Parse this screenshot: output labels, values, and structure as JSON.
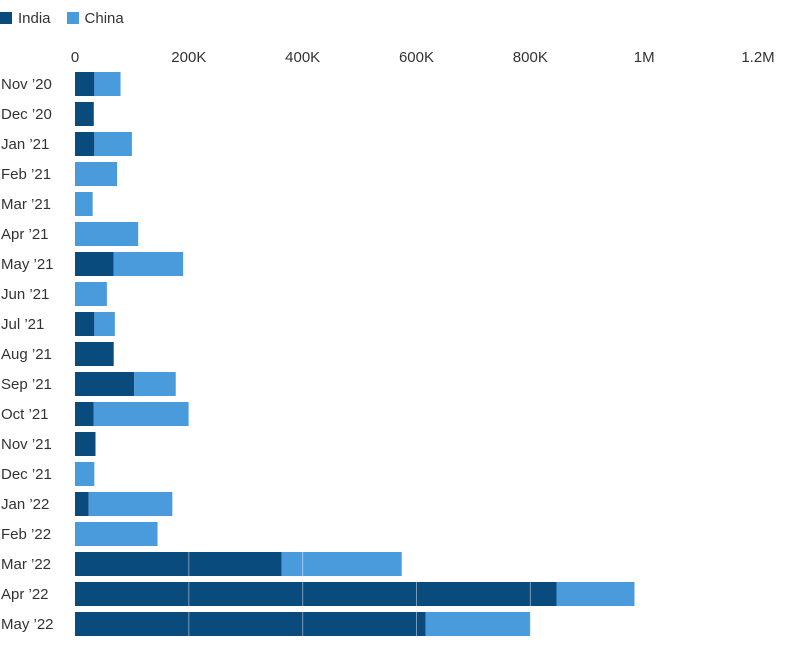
{
  "chart_data": {
    "type": "bar",
    "orientation": "horizontal",
    "stacked": true,
    "title": "",
    "xlabel": "",
    "ylabel": "",
    "xlim": [
      0,
      1200000
    ],
    "x_ticks": [
      0,
      200000,
      400000,
      600000,
      800000,
      1000000,
      1200000
    ],
    "x_tick_labels": [
      "0",
      "200K",
      "400K",
      "600K",
      "800K",
      "1M",
      "1.2M"
    ],
    "legend_position": "top-left",
    "categories": [
      "Nov ’20",
      "Dec ’20",
      "Jan ’21",
      "Feb ’21",
      "Mar ’21",
      "Apr ’21",
      "May ’21",
      "Jun ’21",
      "Jul ’21",
      "Aug ’21",
      "Sep ’21",
      "Oct ’21",
      "Nov ’21",
      "Dec ’21",
      "Jan ’22",
      "Feb ’22",
      "Mar ’22",
      "Apr ’22",
      "May ’22"
    ],
    "series": [
      {
        "name": "India",
        "color": "#0a4b7e",
        "values": [
          34000,
          33000,
          34000,
          0,
          0,
          0,
          68000,
          0,
          34000,
          68000,
          104000,
          33000,
          36000,
          0,
          24000,
          0,
          363000,
          846000,
          616000
        ]
      },
      {
        "name": "China",
        "color": "#4a9bdb",
        "values": [
          46000,
          0,
          66000,
          74000,
          31000,
          111000,
          122000,
          56000,
          36000,
          0,
          73000,
          167000,
          0,
          34000,
          147000,
          145000,
          211000,
          137000,
          184000
        ]
      }
    ]
  }
}
